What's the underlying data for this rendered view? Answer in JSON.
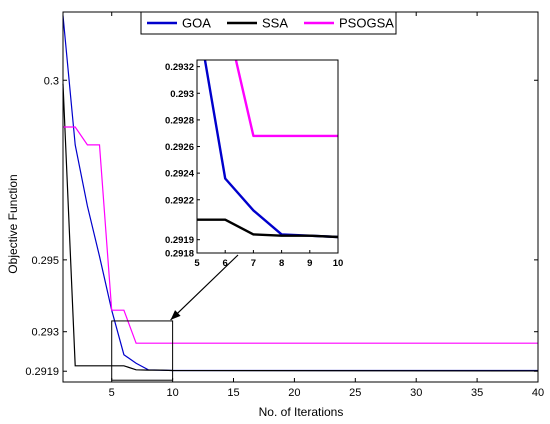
{
  "chart_data": {
    "type": "line",
    "title": "",
    "xlabel": "No. of Iterations",
    "ylabel": "Objective Function",
    "xlim": [
      1,
      40
    ],
    "ylim": [
      0.2916,
      0.3019
    ],
    "xticks": [
      5,
      10,
      15,
      20,
      25,
      30,
      35,
      40
    ],
    "yticks": [
      0.2919,
      0.293,
      0.295,
      0.3
    ],
    "ytick_labels": [
      "0.2919",
      "0.293",
      "0.295",
      "0.3"
    ],
    "grid": false,
    "legend_placement": "top-center",
    "series": [
      {
        "name": "GOA",
        "color": "#0000cc",
        "x": [
          1,
          2,
          3,
          4,
          5,
          6,
          7,
          8,
          9,
          10,
          40
        ],
        "y": [
          0.3018,
          0.2982,
          0.2965,
          0.2951,
          0.2936,
          0.29236,
          0.29212,
          0.29194,
          0.29193,
          0.29192,
          0.29192
        ]
      },
      {
        "name": "SSA",
        "color": "#000000",
        "x": [
          1,
          2,
          3,
          4,
          5,
          6,
          7,
          8,
          9,
          10,
          40
        ],
        "y": [
          0.2999,
          0.29205,
          0.29205,
          0.29205,
          0.29205,
          0.29205,
          0.29194,
          0.29193,
          0.29193,
          0.29192,
          0.29191
        ]
      },
      {
        "name": "PSOGSA",
        "color": "#ff00ff",
        "x": [
          1,
          2,
          3,
          4,
          5,
          6,
          7,
          8,
          9,
          10,
          40
        ],
        "y": [
          0.2987,
          0.2987,
          0.2982,
          0.2982,
          0.2936,
          0.2936,
          0.29268,
          0.29268,
          0.29268,
          0.29268,
          0.29268
        ]
      }
    ],
    "inset": {
      "xlim": [
        5,
        10
      ],
      "ylim": [
        0.2918,
        0.29325
      ],
      "xticks": [
        5,
        6,
        7,
        8,
        9,
        10
      ],
      "yticks": [
        0.2918,
        0.2919,
        0.2922,
        0.2924,
        0.2926,
        0.2928,
        0.293,
        0.2932
      ],
      "ytick_labels": [
        "0.2918",
        "0.2919",
        "0.2922",
        "0.2924",
        "0.2926",
        "0.2928",
        "0.293",
        "0.2932"
      ]
    }
  }
}
